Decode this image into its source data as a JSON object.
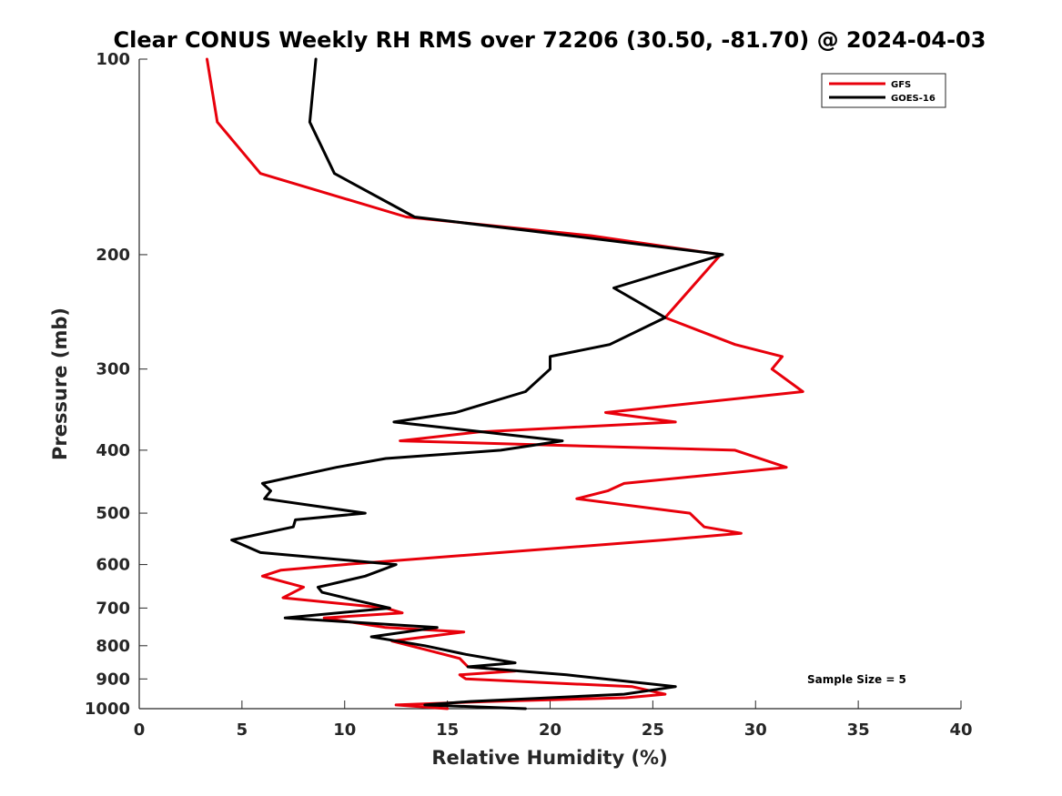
{
  "chart_data": {
    "type": "line",
    "title": "Clear CONUS Weekly RH RMS over 72206 (30.50, -81.70) @ 2024-04-03",
    "xlabel": "Relative Humidity (%)",
    "ylabel": "Pressure (mb)",
    "xlim": [
      0,
      40
    ],
    "ylim": [
      1000,
      100
    ],
    "y_scale": "log",
    "x_ticks": [
      "0",
      "5",
      "10",
      "15",
      "20",
      "25",
      "30",
      "35",
      "40"
    ],
    "y_ticks": [
      "100",
      "200",
      "300",
      "400",
      "500",
      "600",
      "700",
      "800",
      "900",
      "1000"
    ],
    "legend_position": "top-right",
    "grid": false,
    "annotation": "Sample Size = 5",
    "series": [
      {
        "name": "GFS",
        "color": "#e8000b",
        "points": [
          [
            3.3,
            100
          ],
          [
            3.8,
            125
          ],
          [
            5.9,
            150
          ],
          [
            13.0,
            175
          ],
          [
            22.0,
            187
          ],
          [
            28.3,
            200
          ],
          [
            25.6,
            250
          ],
          [
            29.0,
            275
          ],
          [
            31.3,
            287
          ],
          [
            30.8,
            300
          ],
          [
            32.3,
            325
          ],
          [
            22.7,
            350
          ],
          [
            26.1,
            362
          ],
          [
            16.5,
            375
          ],
          [
            12.7,
            387
          ],
          [
            29.0,
            400
          ],
          [
            31.5,
            425
          ],
          [
            23.6,
            450
          ],
          [
            22.8,
            462
          ],
          [
            21.3,
            475
          ],
          [
            26.8,
            500
          ],
          [
            27.5,
            525
          ],
          [
            29.3,
            537
          ],
          [
            25.5,
            550
          ],
          [
            10.0,
            600
          ],
          [
            6.9,
            612
          ],
          [
            6.0,
            625
          ],
          [
            8.0,
            650
          ],
          [
            7.0,
            675
          ],
          [
            12.0,
            700
          ],
          [
            12.8,
            712
          ],
          [
            9.0,
            725
          ],
          [
            12.0,
            750
          ],
          [
            15.8,
            762
          ],
          [
            12.3,
            787
          ],
          [
            14.0,
            812
          ],
          [
            15.6,
            837
          ],
          [
            16.0,
            862
          ],
          [
            18.3,
            875
          ],
          [
            15.6,
            887
          ],
          [
            15.9,
            900
          ],
          [
            24.0,
            925
          ],
          [
            25.6,
            950
          ],
          [
            23.7,
            962
          ],
          [
            17.0,
            975
          ],
          [
            12.5,
            987
          ],
          [
            15.0,
            1000
          ]
        ]
      },
      {
        "name": "GOES-16",
        "color": "#000000",
        "points": [
          [
            8.6,
            100
          ],
          [
            8.3,
            125
          ],
          [
            9.5,
            150
          ],
          [
            13.4,
            175
          ],
          [
            21.0,
            187
          ],
          [
            28.4,
            200
          ],
          [
            23.1,
            225
          ],
          [
            25.6,
            250
          ],
          [
            22.9,
            275
          ],
          [
            20.0,
            287
          ],
          [
            20.0,
            300
          ],
          [
            18.8,
            325
          ],
          [
            15.4,
            350
          ],
          [
            12.4,
            362
          ],
          [
            20.6,
            387
          ],
          [
            17.6,
            400
          ],
          [
            12.0,
            412
          ],
          [
            9.6,
            425
          ],
          [
            6.0,
            450
          ],
          [
            6.4,
            462
          ],
          [
            6.1,
            475
          ],
          [
            11.0,
            500
          ],
          [
            7.6,
            512
          ],
          [
            7.5,
            525
          ],
          [
            4.5,
            550
          ],
          [
            5.9,
            575
          ],
          [
            12.5,
            600
          ],
          [
            11.0,
            625
          ],
          [
            8.7,
            650
          ],
          [
            8.9,
            662
          ],
          [
            10.0,
            675
          ],
          [
            12.2,
            700
          ],
          [
            7.1,
            725
          ],
          [
            14.5,
            750
          ],
          [
            11.3,
            775
          ],
          [
            13.9,
            800
          ],
          [
            15.9,
            825
          ],
          [
            18.3,
            850
          ],
          [
            16.0,
            862
          ],
          [
            18.5,
            875
          ],
          [
            20.8,
            887
          ],
          [
            26.1,
            925
          ],
          [
            23.6,
            950
          ],
          [
            16.1,
            975
          ],
          [
            13.9,
            987
          ],
          [
            18.8,
            1000
          ]
        ]
      }
    ]
  }
}
